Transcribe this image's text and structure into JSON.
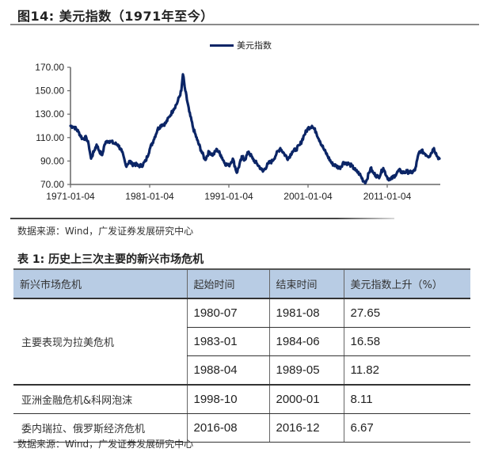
{
  "figure": {
    "label": "图14:",
    "title": "美元指数（1971年至今）",
    "legend": "美元指数",
    "source": "数据来源：Wind，广发证券发展研究中心",
    "line_color": "#0b2566"
  },
  "chart_data": {
    "type": "line",
    "title": "美元指数（1971年至今）",
    "xlabel": "",
    "ylabel": "",
    "ylim": [
      70,
      170
    ],
    "yticks": [
      "70.00",
      "90.00",
      "110.00",
      "130.00",
      "150.00",
      "170.00"
    ],
    "xticks": [
      "1971-01-04",
      "1981-01-04",
      "1991-01-04",
      "2001-01-04",
      "2011-01-04"
    ],
    "grid": false,
    "legend_position": "top",
    "series": [
      {
        "name": "美元指数",
        "color": "#0b2566",
        "x": [
          1971.0,
          1971.5,
          1972.0,
          1972.5,
          1973.0,
          1973.3,
          1973.6,
          1974.0,
          1974.3,
          1974.6,
          1975.0,
          1975.3,
          1975.6,
          1976.0,
          1976.5,
          1977.0,
          1977.5,
          1978.0,
          1978.5,
          1978.8,
          1979.0,
          1979.5,
          1980.0,
          1980.5,
          1981.0,
          1981.5,
          1982.0,
          1982.5,
          1983.0,
          1983.5,
          1984.0,
          1984.5,
          1985.0,
          1985.2,
          1985.5,
          1986.0,
          1986.5,
          1987.0,
          1987.5,
          1988.0,
          1988.5,
          1989.0,
          1989.5,
          1990.0,
          1990.5,
          1991.0,
          1991.5,
          1992.0,
          1992.7,
          1993.0,
          1993.5,
          1994.0,
          1994.5,
          1995.0,
          1995.3,
          1996.0,
          1996.5,
          1997.0,
          1997.5,
          1998.0,
          1998.5,
          1999.0,
          1999.5,
          2000.0,
          2000.5,
          2001.0,
          2001.5,
          2002.0,
          2002.5,
          2003.0,
          2003.5,
          2004.0,
          2004.5,
          2005.0,
          2005.5,
          2006.0,
          2006.5,
          2007.0,
          2007.5,
          2008.0,
          2008.3,
          2008.9,
          2009.2,
          2009.9,
          2010.5,
          2011.0,
          2011.4,
          2012.0,
          2012.5,
          2013.0,
          2013.5,
          2014.0,
          2014.5,
          2015.0,
          2015.3,
          2015.8,
          2016.3,
          2016.9,
          2017.3,
          2017.6
        ],
        "values": [
          120,
          119,
          115,
          109,
          110,
          104,
          92,
          99,
          104,
          99,
          95,
          104,
          107,
          107,
          105,
          104,
          98,
          86,
          90,
          87,
          88,
          86,
          86,
          90,
          100,
          108,
          117,
          121,
          122,
          128,
          134,
          140,
          150,
          164,
          150,
          132,
          118,
          108,
          99,
          91,
          98,
          95,
          100,
          95,
          88,
          86,
          92,
          80,
          94,
          91,
          98,
          92,
          88,
          84,
          81,
          88,
          90,
          96,
          101,
          96,
          92,
          98,
          100,
          104,
          112,
          118,
          120,
          115,
          107,
          100,
          94,
          88,
          86,
          84,
          89,
          88,
          86,
          82,
          79,
          73,
          72,
          84,
          80,
          76,
          84,
          76,
          74,
          78,
          82,
          80,
          81,
          80,
          82,
          97,
          99,
          96,
          94,
          101,
          94,
          92
        ]
      }
    ]
  },
  "table": {
    "label": "表 1:",
    "title": "历史上三次主要的新兴市场危机",
    "headers": [
      "新兴市场危机",
      "起始时间",
      "结束时间",
      "美元指数上升（%）"
    ],
    "group_name": "主要表现为拉美危机",
    "rows": [
      {
        "name": "主要表现为拉美危机",
        "start": "1980-07",
        "end": "1981-08",
        "rise": "27.65"
      },
      {
        "name": "主要表现为拉美危机",
        "start": "1983-01",
        "end": "1984-06",
        "rise": "16.58"
      },
      {
        "name": "主要表现为拉美危机",
        "start": "1988-04",
        "end": "1989-05",
        "rise": "11.82"
      },
      {
        "name": "亚洲金融危机&科网泡沫",
        "start": "1998-10",
        "end": "2000-01",
        "rise": "8.11"
      },
      {
        "name": "委内瑞拉、俄罗斯经济危机",
        "start": "2016-08",
        "end": "2016-12",
        "rise": "6.67"
      }
    ],
    "source": "数据来源：Wind，广发证券发展研究中心"
  }
}
